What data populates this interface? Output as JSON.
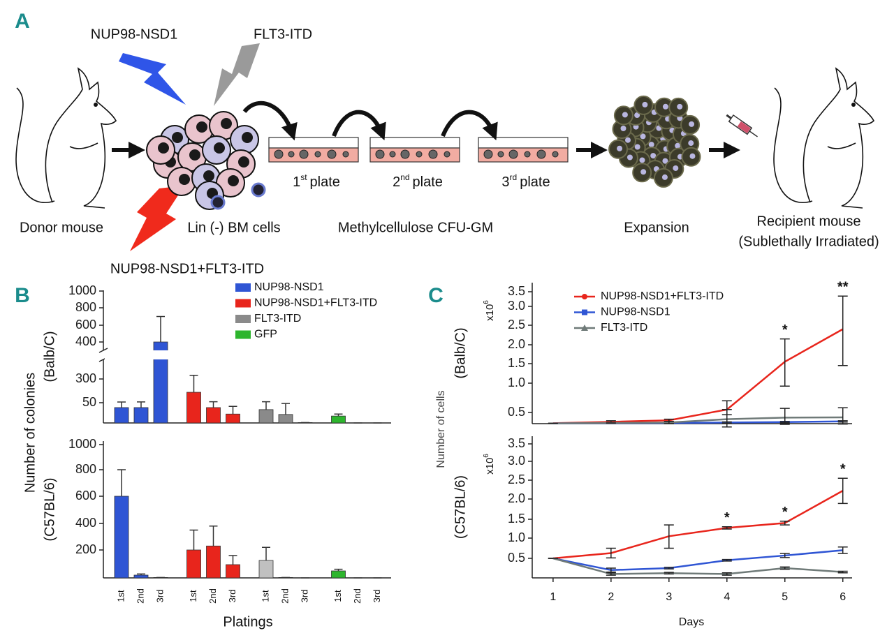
{
  "panel_a": {
    "label": "A",
    "agents": [
      "NUP98-NSD1",
      "FLT3-ITD",
      "NUP98-NSD1+FLT3-ITD"
    ],
    "donor": "Donor mouse",
    "cells": "Lin (-) BM cells",
    "plates": [
      {
        "n": "1",
        "sup": "st",
        "word": "plate"
      },
      {
        "n": "2",
        "sup": "nd",
        "word": "plate"
      },
      {
        "n": "3",
        "sup": "rd",
        "word": "plate"
      }
    ],
    "culture": "Methylcellulose CFU-GM",
    "expansion": "Expansion",
    "recipient": "Recipient mouse",
    "recipient_note": "(Sublethally Irradiated)"
  },
  "panel_labels": {
    "b": "B",
    "c": "C"
  },
  "chart_data": [
    {
      "type": "bar",
      "ylabel": "Number of colonies",
      "sublabel": "(Balb/C)",
      "ylim": [
        0,
        1000
      ],
      "yticks": [
        50,
        300,
        400,
        600,
        800,
        1000
      ],
      "axis_break": true,
      "series": [
        {
          "name": "NUP98-NSD1",
          "color": "#2f55d4",
          "values": [
            38,
            38,
            400
          ],
          "errors": [
            19,
            20,
            300
          ]
        },
        {
          "name": "NUP98-NSD1+FLT3-ITD",
          "color": "#e8251c",
          "values": [
            160,
            38,
            22
          ],
          "errors": [
            150,
            22,
            19
          ]
        },
        {
          "name": "FLT3-ITD",
          "color": "#8a8a8a",
          "values": [
            33,
            21,
            1
          ],
          "errors": [
            27,
            27,
            0
          ]
        },
        {
          "name": "GFP",
          "color": "#2db52d",
          "values": [
            17,
            0,
            0
          ],
          "errors": [
            5,
            0,
            0
          ]
        }
      ]
    },
    {
      "type": "bar",
      "sublabel": "(C57BL/6)",
      "xlabel": "Platings",
      "categories": [
        "1st",
        "2nd",
        "3rd"
      ],
      "ylim": [
        0,
        1000
      ],
      "yticks": [
        200,
        400,
        600,
        800,
        1000
      ],
      "series": [
        {
          "color": "#2f55d4",
          "values": [
            600,
            20,
            3
          ],
          "errors": [
            200,
            8,
            0
          ]
        },
        {
          "color": "#e8251c",
          "values": [
            200,
            230,
            95
          ],
          "errors": [
            150,
            150,
            65
          ]
        },
        {
          "color": "#c0c0c0",
          "values": [
            125,
            3,
            0
          ],
          "errors": [
            95,
            0,
            0
          ]
        },
        {
          "color": "#2db52d",
          "values": [
            50,
            0,
            0
          ],
          "errors": [
            12,
            0,
            0
          ]
        }
      ]
    },
    {
      "type": "line",
      "ylabel": "Number of cells",
      "sublabel": "(Balb/C)",
      "unit": {
        "base": "x10",
        "exp": "6"
      },
      "x": [
        1,
        2,
        3,
        4,
        5,
        6
      ],
      "xlim": [
        0.64,
        6.16
      ],
      "ylim": [
        0,
        3.5
      ],
      "yticks": [
        0.5,
        {
          "value": 1,
          "label": "1.0"
        },
        1.5,
        {
          "value": 2,
          "label": "2.0"
        },
        2.5,
        {
          "value": 3,
          "label": "3.0"
        },
        3.5
      ],
      "series": [
        {
          "name": "NUP98-NSD1+FLT3-ITD",
          "color": "#e8251c",
          "marker": "circle",
          "values": [
            0.02,
            0.08,
            0.15,
            0.55,
            1.55,
            2.4
          ],
          "errors": [
            0,
            0.05,
            0.05,
            0.15,
            0.6,
            0.95
          ]
        },
        {
          "name": "NUP98-NSD1",
          "color": "#2f55d4",
          "marker": "square",
          "values": [
            0.01,
            0.02,
            0.03,
            0.05,
            0.07,
            0.1
          ],
          "errors": [
            0,
            0.01,
            0.02,
            0.03,
            0.03,
            0.03
          ]
        },
        {
          "name": "FLT3-ITD",
          "color": "#6f7a78",
          "marker": "triangle",
          "values": [
            0.01,
            0.03,
            0.05,
            0.2,
            0.27,
            0.28
          ],
          "errors": [
            0,
            0,
            0.05,
            0.35,
            0.3,
            0.3
          ]
        }
      ],
      "annotations": [
        {
          "x": 5,
          "text": "*"
        },
        {
          "x": 6,
          "text": "**"
        }
      ]
    },
    {
      "type": "line",
      "sublabel": "(C57BL/6)",
      "xlabel": "Days",
      "unit": {
        "base": "x10",
        "exp": "6"
      },
      "x": [
        1,
        2,
        3,
        4,
        5,
        6
      ],
      "xlim": [
        0.64,
        6.16
      ],
      "xticks": [
        1,
        2,
        3,
        4,
        5,
        6
      ],
      "ylim": [
        0,
        3.5
      ],
      "yticks": [
        0.5,
        {
          "value": 1,
          "label": "1.0"
        },
        1.5,
        {
          "value": 2,
          "label": "2.0"
        },
        2.5,
        {
          "value": 3,
          "label": "3.0"
        },
        3.5
      ],
      "series": [
        {
          "color": "#e8251c",
          "values": [
            0.5,
            0.63,
            1.05,
            1.27,
            1.4,
            2.22
          ],
          "errors": [
            0,
            0.12,
            0.3,
            0.03,
            0.05,
            0.33
          ]
        },
        {
          "color": "#2f55d4",
          "values": [
            0.5,
            0.2,
            0.25,
            0.45,
            0.57,
            0.7
          ],
          "errors": [
            0,
            0.05,
            0.02,
            0.02,
            0.05,
            0.08
          ]
        },
        {
          "color": "#6f7a78",
          "values": [
            0.5,
            0.1,
            0.12,
            0.1,
            0.25,
            0.15
          ],
          "errors": [
            0,
            0.03,
            0.02,
            0.03,
            0.03,
            0.02
          ]
        }
      ],
      "annotations": [
        {
          "x": 4,
          "text": "*"
        },
        {
          "x": 5,
          "text": "*"
        },
        {
          "x": 6,
          "text": "*"
        }
      ]
    }
  ]
}
